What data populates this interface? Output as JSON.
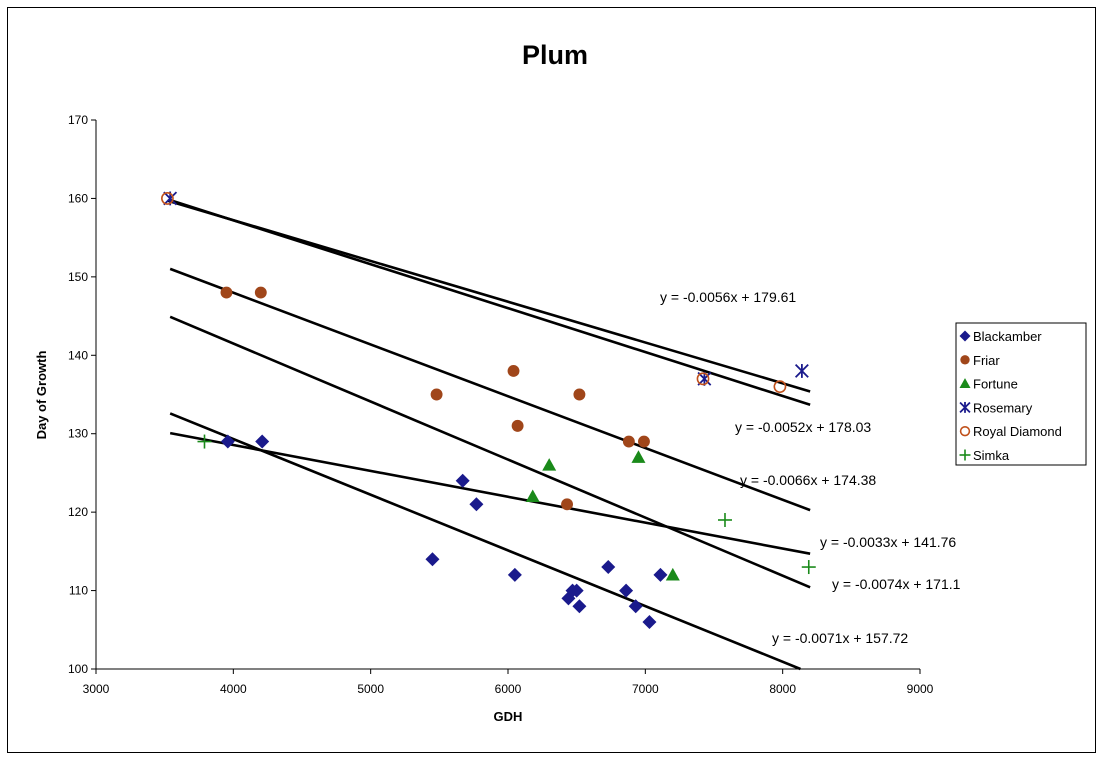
{
  "chart_data": {
    "type": "scatter",
    "title": "Plum",
    "xlabel": "GDH",
    "ylabel": "Day of Growth",
    "xlim": [
      3000,
      9000
    ],
    "ylim": [
      100,
      170
    ],
    "xticks": [
      3000,
      4000,
      5000,
      6000,
      7000,
      8000,
      9000
    ],
    "yticks": [
      100,
      110,
      120,
      130,
      140,
      150,
      160,
      170
    ],
    "grid": false,
    "legend_position": "right",
    "series": [
      {
        "name": "Blackamber",
        "marker": "diamond",
        "color": "#1a1a8c",
        "points": [
          [
            3960,
            129
          ],
          [
            4210,
            129
          ],
          [
            5450,
            114
          ],
          [
            5670,
            124
          ],
          [
            5770,
            121
          ],
          [
            6050,
            112
          ],
          [
            6440,
            109
          ],
          [
            6470,
            110
          ],
          [
            6500,
            110
          ],
          [
            6520,
            108
          ],
          [
            6730,
            113
          ],
          [
            6860,
            110
          ],
          [
            6930,
            108
          ],
          [
            7030,
            106
          ],
          [
            7110,
            112
          ]
        ]
      },
      {
        "name": "Friar",
        "marker": "circle",
        "color": "#a0461a",
        "points": [
          [
            3950,
            148
          ],
          [
            4200,
            148
          ],
          [
            5480,
            135
          ],
          [
            6040,
            138
          ],
          [
            6070,
            131
          ],
          [
            6430,
            121
          ],
          [
            6520,
            135
          ],
          [
            6880,
            129
          ],
          [
            6990,
            129
          ]
        ]
      },
      {
        "name": "Fortune",
        "marker": "triangle",
        "color": "#1a8a1a",
        "points": [
          [
            6180,
            122
          ],
          [
            6300,
            126
          ],
          [
            6950,
            127
          ],
          [
            7200,
            112
          ]
        ]
      },
      {
        "name": "Rosemary",
        "marker": "star",
        "color": "#1a1a8c",
        "points": [
          [
            3540,
            160
          ],
          [
            7430,
            137
          ],
          [
            8140,
            138
          ]
        ]
      },
      {
        "name": "Royal Diamond",
        "marker": "open-circle",
        "color": "#c0501a",
        "points": [
          [
            3520,
            160
          ],
          [
            7420,
            137
          ],
          [
            7980,
            136
          ]
        ]
      },
      {
        "name": "Simka",
        "marker": "plus",
        "color": "#1a8a1a",
        "points": [
          [
            3790,
            129
          ],
          [
            7580,
            119
          ],
          [
            8190,
            113
          ]
        ]
      }
    ],
    "trendlines": [
      {
        "equation": "y = -0.0056x + 179.61",
        "slope": -0.0056,
        "intercept": 179.61,
        "x_range": [
          3540,
          8200
        ]
      },
      {
        "equation": "y = -0.0052x + 178.03",
        "slope": -0.0052,
        "intercept": 178.03,
        "x_range": [
          3520,
          8200
        ]
      },
      {
        "equation": "y = -0.0066x + 174.38",
        "slope": -0.0066,
        "intercept": 174.38,
        "x_range": [
          3540,
          8200
        ]
      },
      {
        "equation": "y = -0.0033x + 141.76",
        "slope": -0.0033,
        "intercept": 141.76,
        "x_range": [
          3540,
          8200
        ]
      },
      {
        "equation": "y = -0.0074x + 171.1",
        "slope": -0.0074,
        "intercept": 171.1,
        "x_range": [
          3540,
          8200
        ]
      },
      {
        "equation": "y = -0.0071x + 157.72",
        "slope": -0.0071,
        "intercept": 157.72,
        "x_range": [
          3540,
          8200
        ]
      }
    ]
  }
}
